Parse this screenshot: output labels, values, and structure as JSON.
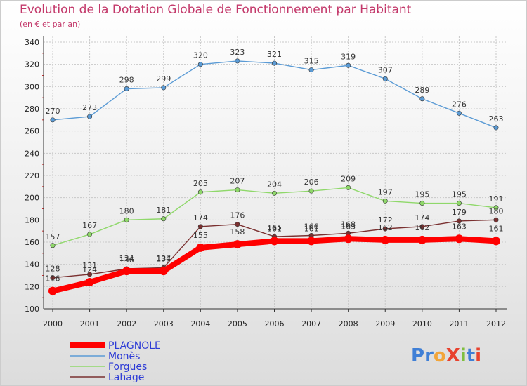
{
  "header": {
    "title": "Evolution de la Dotation Globale de Fonctionnement par Habitant",
    "subtitle": "(en € et par an)"
  },
  "logo": {
    "text": "ProXiti",
    "letters": [
      "P",
      "r",
      "o",
      "X",
      "i",
      "t",
      "i"
    ],
    "colors": [
      "#3f7fd6",
      "#3f7fd6",
      "#f2a53a",
      "#e8422e",
      "#7fbf3f",
      "#3f7fd6",
      "#e8422e"
    ]
  },
  "chart_data": {
    "type": "line",
    "title": "Evolution de la Dotation Globale de Fonctionnement par Habitant",
    "subtitle": "(en € et par an)",
    "xlabel": "",
    "ylabel": "",
    "x": [
      2000,
      2001,
      2002,
      2003,
      2004,
      2005,
      2006,
      2007,
      2008,
      2009,
      2010,
      2011,
      2012
    ],
    "ylim": [
      100,
      340
    ],
    "yticks": [
      100,
      120,
      140,
      160,
      180,
      200,
      220,
      240,
      260,
      280,
      300,
      320,
      340
    ],
    "grid": true,
    "legend_position": "bottom-left",
    "series": [
      {
        "name": "Monès",
        "color": "#5b9bd5",
        "emphasis": false,
        "values": [
          270,
          273,
          298,
          299,
          320,
          323,
          321,
          315,
          319,
          307,
          289,
          276,
          263
        ]
      },
      {
        "name": "Forgues",
        "color": "#8fd86a",
        "emphasis": false,
        "values": [
          157,
          167,
          180,
          181,
          205,
          207,
          204,
          206,
          209,
          197,
          195,
          195,
          191
        ]
      },
      {
        "name": "Lahage",
        "color": "#7a3030",
        "emphasis": false,
        "values": [
          128,
          131,
          136,
          137,
          174,
          176,
          165,
          166,
          168,
          172,
          174,
          179,
          180
        ]
      },
      {
        "name": "PLAGNOLE",
        "color": "#ff0000",
        "emphasis": true,
        "values": [
          116,
          124,
          134,
          134,
          155,
          158,
          161,
          161,
          163,
          162,
          162,
          163,
          161
        ]
      }
    ],
    "legend_order": [
      "PLAGNOLE",
      "Monès",
      "Forgues",
      "Lahage"
    ]
  }
}
